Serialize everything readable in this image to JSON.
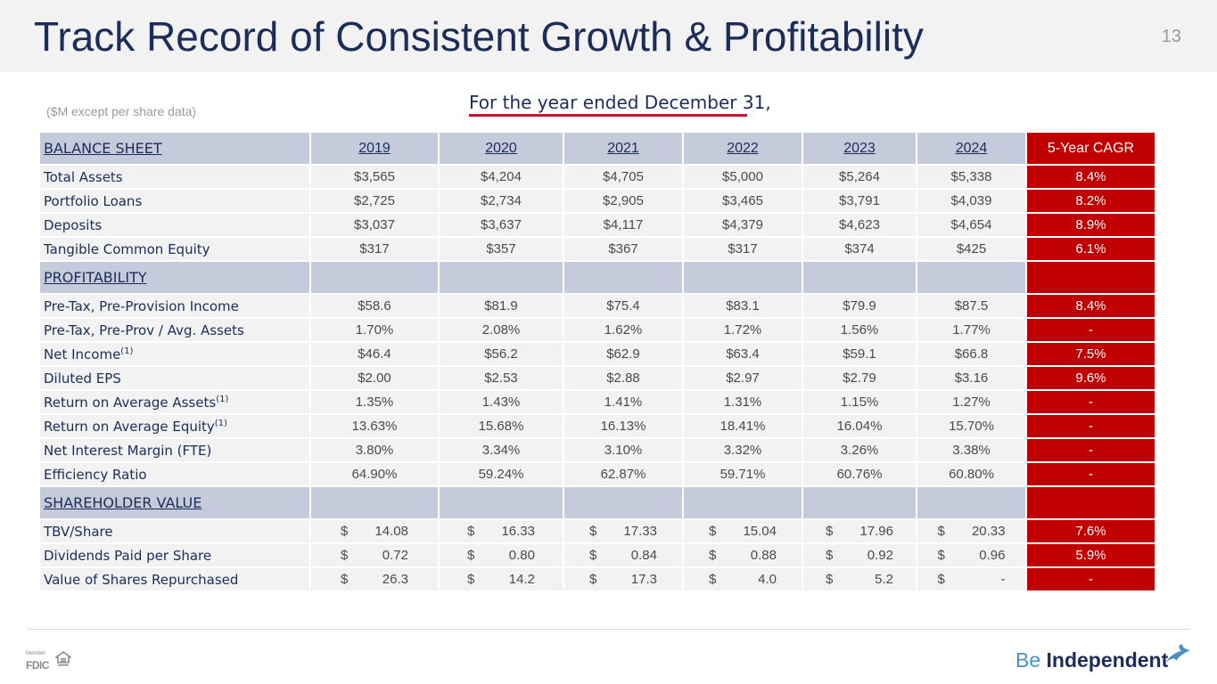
{
  "header": {
    "title": "Track Record of Consistent Growth & Profitability",
    "page_number": "13"
  },
  "units_note": "($M except per share data)",
  "period_heading": "For the year ended December 31,",
  "table": {
    "years": [
      "2019",
      "2020",
      "2021",
      "2022",
      "2023",
      "2024"
    ],
    "cagr_header": "5-Year CAGR",
    "balance_sheet": {
      "title": "BALANCE SHEET",
      "rows": [
        {
          "label": "Total Assets",
          "values": [
            "$3,565",
            "$4,204",
            "$4,705",
            "$5,000",
            "$5,264",
            "$5,338"
          ],
          "cagr": "8.4%"
        },
        {
          "label": "Portfolio Loans",
          "values": [
            "$2,725",
            "$2,734",
            "$2,905",
            "$3,465",
            "$3,791",
            "$4,039"
          ],
          "cagr": "8.2%"
        },
        {
          "label": "Deposits",
          "values": [
            "$3,037",
            "$3,637",
            "$4,117",
            "$4,379",
            "$4,623",
            "$4,654"
          ],
          "cagr": "8.9%"
        },
        {
          "label": "Tangible Common Equity",
          "values": [
            "$317",
            "$357",
            "$367",
            "$317",
            "$374",
            "$425"
          ],
          "cagr": "6.1%"
        }
      ]
    },
    "profitability": {
      "title": "PROFITABILITY",
      "footnote_mark": "(1)",
      "rows": [
        {
          "label": "Pre-Tax, Pre-Provision Income",
          "values": [
            "$58.6",
            "$81.9",
            "$75.4",
            "$83.1",
            "$79.9",
            "$87.5"
          ],
          "cagr": "8.4%"
        },
        {
          "label": "Pre-Tax, Pre-Prov / Avg. Assets",
          "values": [
            "1.70%",
            "2.08%",
            "1.62%",
            "1.72%",
            "1.56%",
            "1.77%"
          ],
          "cagr": "-"
        },
        {
          "label": "Net Income",
          "values": [
            "$46.4",
            "$56.2",
            "$62.9",
            "$63.4",
            "$59.1",
            "$66.8"
          ],
          "cagr": "7.5%"
        },
        {
          "label": "Diluted EPS",
          "values": [
            "$2.00",
            "$2.53",
            "$2.88",
            "$2.97",
            "$2.79",
            "$3.16"
          ],
          "cagr": "9.6%"
        },
        {
          "label": "Return on Average Assets",
          "values": [
            "1.35%",
            "1.43%",
            "1.41%",
            "1.31%",
            "1.15%",
            "1.27%"
          ],
          "cagr": "-"
        },
        {
          "label": "Return on Average Equity",
          "values": [
            "13.63%",
            "15.68%",
            "16.13%",
            "18.41%",
            "16.04%",
            "15.70%"
          ],
          "cagr": "-"
        },
        {
          "label": "Net Interest Margin (FTE)",
          "values": [
            "3.80%",
            "3.34%",
            "3.10%",
            "3.32%",
            "3.26%",
            "3.38%"
          ],
          "cagr": "-"
        },
        {
          "label": "Efficiency Ratio",
          "values": [
            "64.90%",
            "59.24%",
            "62.87%",
            "59.71%",
            "60.76%",
            "60.80%"
          ],
          "cagr": "-"
        }
      ]
    },
    "shareholder_value": {
      "title": "SHAREHOLDER VALUE",
      "currency_symbol": "$",
      "rows": [
        {
          "label": "TBV/Share",
          "values": [
            "14.08",
            "16.33",
            "17.33",
            "15.04",
            "17.96",
            "20.33"
          ],
          "cagr": "7.6%"
        },
        {
          "label": "Dividends Paid per Share",
          "values": [
            "0.72",
            "0.80",
            "0.84",
            "0.88",
            "0.92",
            "0.96"
          ],
          "cagr": "5.9%"
        },
        {
          "label": "Value of Shares Repurchased",
          "values": [
            "26.3",
            "14.2",
            "17.3",
            "4.0",
            "5.2",
            "-"
          ],
          "cagr": "-"
        }
      ]
    }
  },
  "footer": {
    "fdic_member": "Member",
    "fdic": "FDIC",
    "brand_be": "Be",
    "brand_independent": "Independent",
    "colors": {
      "navy": "#1c2d5a",
      "red": "#c00000",
      "section_bg": "#c5cbdb",
      "brand_blue": "#4a90c8"
    }
  }
}
